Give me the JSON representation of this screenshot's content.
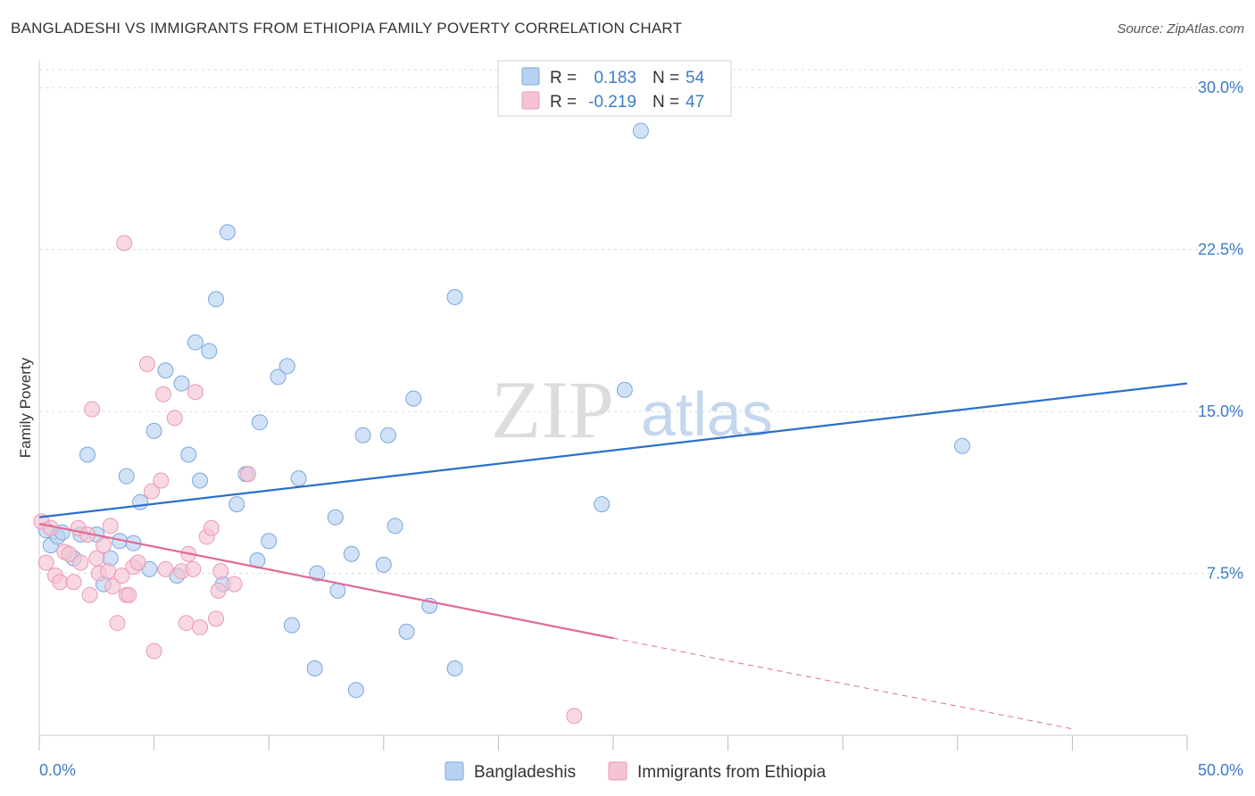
{
  "title": "BANGLADESHI VS IMMIGRANTS FROM ETHIOPIA FAMILY POVERTY CORRELATION CHART",
  "source": "Source: ZipAtlas.com",
  "watermark": {
    "zip": "ZIP",
    "atlas": "atlas"
  },
  "colors": {
    "blue": "#3d7cc9",
    "blue_fill": "#b9d1f1",
    "blue_line": "#2a6fcc",
    "pink": "#e07aa0",
    "pink_fill": "#f6c3d4",
    "pink_line": "#e06a95",
    "grid": "#d9d9d9"
  },
  "legend": {
    "rows": [
      {
        "r_label": "R =",
        "r_value": "0.183",
        "n_label": "N =",
        "n_value": "54"
      },
      {
        "r_label": "R =",
        "r_value": "-0.219",
        "n_label": "N =",
        "n_value": "47"
      }
    ]
  },
  "chart_data": {
    "type": "scatter",
    "title": "BANGLADESHI VS IMMIGRANTS FROM ETHIOPIA FAMILY POVERTY CORRELATION CHART",
    "xlabel": "",
    "ylabel": "Family Poverty",
    "xlim": [
      0,
      50
    ],
    "ylim": [
      0,
      31
    ],
    "x_tick_labels": [
      "0.0%",
      "50.0%"
    ],
    "y_ticks": [
      7.5,
      15.0,
      22.5,
      30.0
    ],
    "y_tick_labels": [
      "7.5%",
      "15.0%",
      "22.5%",
      "30.0%"
    ],
    "grid": true,
    "legend_position": "top-center",
    "series": [
      {
        "name": "Bangladeshis",
        "color": "#3d7cc9",
        "r": 0.183,
        "n": 54,
        "trend": {
          "x": [
            0.0,
            50.0
          ],
          "y": [
            10.1,
            16.3
          ]
        },
        "points": [
          [
            0.3,
            9.5
          ],
          [
            0.5,
            8.8
          ],
          [
            0.8,
            9.2
          ],
          [
            1.0,
            9.4
          ],
          [
            1.5,
            8.2
          ],
          [
            1.8,
            9.3
          ],
          [
            2.1,
            13.0
          ],
          [
            2.5,
            9.3
          ],
          [
            2.8,
            7.0
          ],
          [
            3.1,
            8.2
          ],
          [
            3.5,
            9.0
          ],
          [
            3.8,
            12.0
          ],
          [
            4.1,
            8.9
          ],
          [
            4.4,
            10.8
          ],
          [
            4.8,
            7.7
          ],
          [
            5.0,
            14.1
          ],
          [
            5.5,
            16.9
          ],
          [
            6.0,
            7.4
          ],
          [
            6.2,
            16.3
          ],
          [
            6.5,
            13.0
          ],
          [
            6.8,
            18.2
          ],
          [
            7.0,
            11.8
          ],
          [
            7.4,
            17.8
          ],
          [
            7.7,
            20.2
          ],
          [
            8.0,
            7.0
          ],
          [
            8.2,
            23.3
          ],
          [
            8.6,
            10.7
          ],
          [
            9.0,
            12.1
          ],
          [
            9.5,
            8.1
          ],
          [
            9.6,
            14.5
          ],
          [
            10.0,
            9.0
          ],
          [
            10.4,
            16.6
          ],
          [
            10.8,
            17.1
          ],
          [
            11.0,
            5.1
          ],
          [
            11.3,
            11.9
          ],
          [
            12.0,
            3.1
          ],
          [
            12.1,
            7.5
          ],
          [
            12.9,
            10.1
          ],
          [
            13.0,
            6.7
          ],
          [
            13.6,
            8.4
          ],
          [
            13.8,
            2.1
          ],
          [
            14.1,
            13.9
          ],
          [
            15.0,
            7.9
          ],
          [
            15.2,
            13.9
          ],
          [
            15.5,
            9.7
          ],
          [
            16.0,
            4.8
          ],
          [
            16.3,
            15.6
          ],
          [
            17.0,
            6.0
          ],
          [
            18.1,
            3.1
          ],
          [
            18.1,
            20.3
          ],
          [
            24.5,
            10.7
          ],
          [
            25.5,
            16.0
          ],
          [
            26.2,
            28.0
          ],
          [
            40.2,
            13.4
          ]
        ]
      },
      {
        "name": "Immigrants from Ethiopia",
        "color": "#e07aa0",
        "r": -0.219,
        "n": 47,
        "trend_solid": {
          "x": [
            0.0,
            25.0
          ],
          "y": [
            9.8,
            4.5
          ]
        },
        "trend_dashed": {
          "x": [
            25.0,
            45.0
          ],
          "y": [
            4.5,
            0.3
          ]
        },
        "points": [
          [
            0.1,
            9.9
          ],
          [
            0.3,
            8.0
          ],
          [
            0.5,
            9.6
          ],
          [
            0.7,
            7.4
          ],
          [
            0.9,
            7.1
          ],
          [
            1.1,
            8.5
          ],
          [
            1.3,
            8.4
          ],
          [
            1.5,
            7.1
          ],
          [
            1.7,
            9.6
          ],
          [
            1.8,
            8.0
          ],
          [
            2.1,
            9.3
          ],
          [
            2.2,
            6.5
          ],
          [
            2.3,
            15.1
          ],
          [
            2.5,
            8.2
          ],
          [
            2.6,
            7.5
          ],
          [
            2.8,
            8.8
          ],
          [
            3.0,
            7.6
          ],
          [
            3.1,
            9.7
          ],
          [
            3.2,
            6.9
          ],
          [
            3.4,
            5.2
          ],
          [
            3.6,
            7.4
          ],
          [
            3.7,
            22.8
          ],
          [
            3.8,
            6.5
          ],
          [
            3.9,
            6.5
          ],
          [
            4.1,
            7.8
          ],
          [
            4.3,
            8.0
          ],
          [
            4.7,
            17.2
          ],
          [
            4.9,
            11.3
          ],
          [
            5.0,
            3.9
          ],
          [
            5.3,
            11.8
          ],
          [
            5.4,
            15.8
          ],
          [
            5.5,
            7.7
          ],
          [
            5.9,
            14.7
          ],
          [
            6.2,
            7.6
          ],
          [
            6.4,
            5.2
          ],
          [
            6.5,
            8.4
          ],
          [
            6.7,
            7.7
          ],
          [
            6.8,
            15.9
          ],
          [
            7.0,
            5.0
          ],
          [
            7.3,
            9.2
          ],
          [
            7.5,
            9.6
          ],
          [
            7.7,
            5.4
          ],
          [
            7.8,
            6.7
          ],
          [
            7.9,
            7.6
          ],
          [
            8.5,
            7.0
          ],
          [
            9.1,
            12.1
          ],
          [
            23.3,
            0.9
          ]
        ]
      }
    ]
  },
  "bottom_legend": [
    "Bangladeshis",
    "Immigrants from Ethiopia"
  ]
}
